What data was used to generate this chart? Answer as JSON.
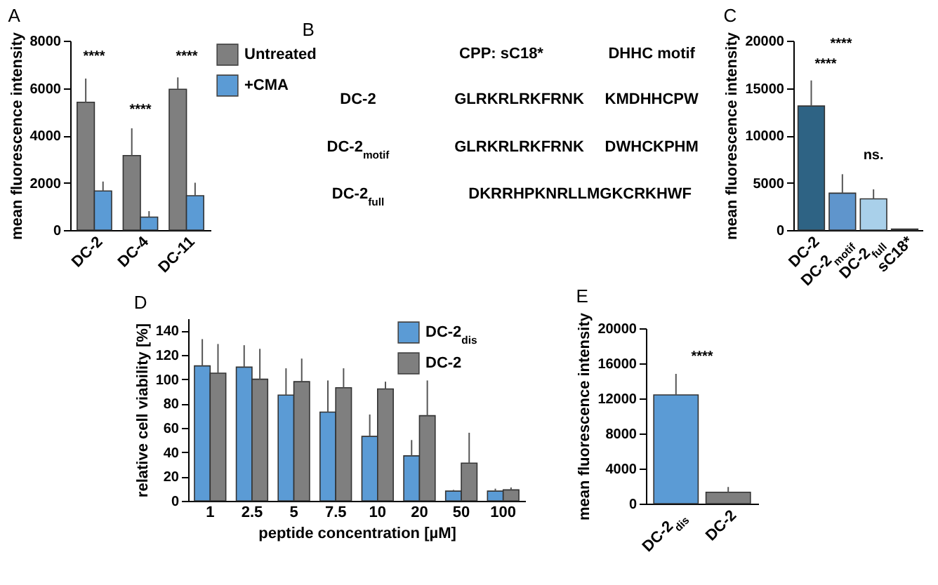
{
  "chart_data": [
    {
      "type": "bar",
      "title": "A",
      "ylabel": "mean fluorescence intensity",
      "categories": [
        "DC-2",
        "DC-4",
        "DC-11"
      ],
      "ylim": [
        0,
        8000
      ],
      "yticks": [
        0,
        2000,
        4000,
        6000,
        8000
      ],
      "legend": "top right",
      "series": [
        {
          "name": "Untreated",
          "color": "#7f7f7f",
          "values": [
            5400,
            3150,
            5950
          ],
          "errors": [
            [
              5400,
              6400
            ],
            [
              3150,
              4300
            ],
            [
              5950,
              6450
            ]
          ]
        },
        {
          "name": "+CMA",
          "color": "#5b9bd5",
          "values": [
            1650,
            550,
            1450
          ],
          "errors": [
            [
              1650,
              2050
            ],
            [
              550,
              800
            ],
            [
              1450,
              2000
            ]
          ]
        }
      ],
      "annotations": [
        "****",
        "****",
        "****"
      ]
    },
    {
      "type": "other",
      "title": "B",
      "annotations": [
        "CPP: sC18*",
        "DHHC motif",
        "DC-2",
        "DC-2$_{motif}$",
        "DC-2$_{full}$",
        "GLRKRLRKFRNK",
        "KMDHHCPW",
        "GLRKRLRKFRNK",
        "DWHCKPHM",
        "DKRRHPKNRLLMGKCRKHWF"
      ]
    },
    {
      "type": "bar",
      "title": "C",
      "ylabel": "mean fluorescence intensity",
      "categories": [
        "DC-2",
        "DC-2$_{motif}$",
        "DC-2$_{full}$",
        "sC18*"
      ],
      "ylim": [
        0,
        20000
      ],
      "yticks": [
        0,
        5000,
        10000,
        15000,
        20000
      ],
      "values": [
        13100,
        3900,
        3300,
        100
      ],
      "colors": [
        "#2e6384",
        "#5f95cc",
        "#a9d0ea",
        "#2e6384"
      ],
      "errors": [
        [
          13100,
          15800
        ],
        [
          3900,
          5900
        ],
        [
          3300,
          4300
        ],
        null
      ],
      "annotations": [
        "****",
        "****",
        "ns."
      ]
    },
    {
      "type": "bar",
      "title": "D",
      "ylabel": "relative cell viability [%]",
      "xlabel": "peptide concentration [µM]",
      "categories": [
        "1",
        "2.5",
        "5",
        "7.5",
        "10",
        "20",
        "50",
        "100"
      ],
      "ylim": [
        0,
        150
      ],
      "yticks": [
        0,
        20,
        40,
        60,
        80,
        100,
        120,
        140
      ],
      "legend": "top right",
      "series": [
        {
          "name": "DC-2$_{dis}$",
          "color": "#5b9bd5",
          "values": [
            111,
            110,
            87,
            73,
            53,
            37,
            8,
            8
          ],
          "errors": [
            [
              111,
              133
            ],
            [
              110,
              128
            ],
            [
              87,
              109
            ],
            [
              73,
              99
            ],
            [
              53,
              71
            ],
            [
              37,
              50
            ],
            [
              8,
              9
            ],
            [
              8,
              10
            ]
          ]
        },
        {
          "name": "DC-2",
          "color": "#7f7f7f",
          "values": [
            105,
            100,
            98,
            93,
            92,
            70,
            31,
            9
          ],
          "errors": [
            [
              105,
              129
            ],
            [
              100,
              125
            ],
            [
              98,
              117
            ],
            [
              93,
              109
            ],
            [
              92,
              98
            ],
            [
              70,
              99
            ],
            [
              31,
              56
            ],
            [
              9,
              11
            ]
          ]
        }
      ]
    },
    {
      "type": "bar",
      "title": "E",
      "ylabel": "mean fluorescence intensity",
      "categories": [
        "DC-2$_{dis}$",
        "DC-2"
      ],
      "ylim": [
        0,
        20000
      ],
      "yticks": [
        0,
        4000,
        8000,
        12000,
        16000,
        20000
      ],
      "values": [
        12400,
        1300
      ],
      "colors": [
        "#5b9bd5",
        "#7f7f7f"
      ],
      "errors": [
        [
          12400,
          14800
        ],
        [
          1300,
          1900
        ]
      ],
      "annotations": [
        "****"
      ]
    }
  ]
}
